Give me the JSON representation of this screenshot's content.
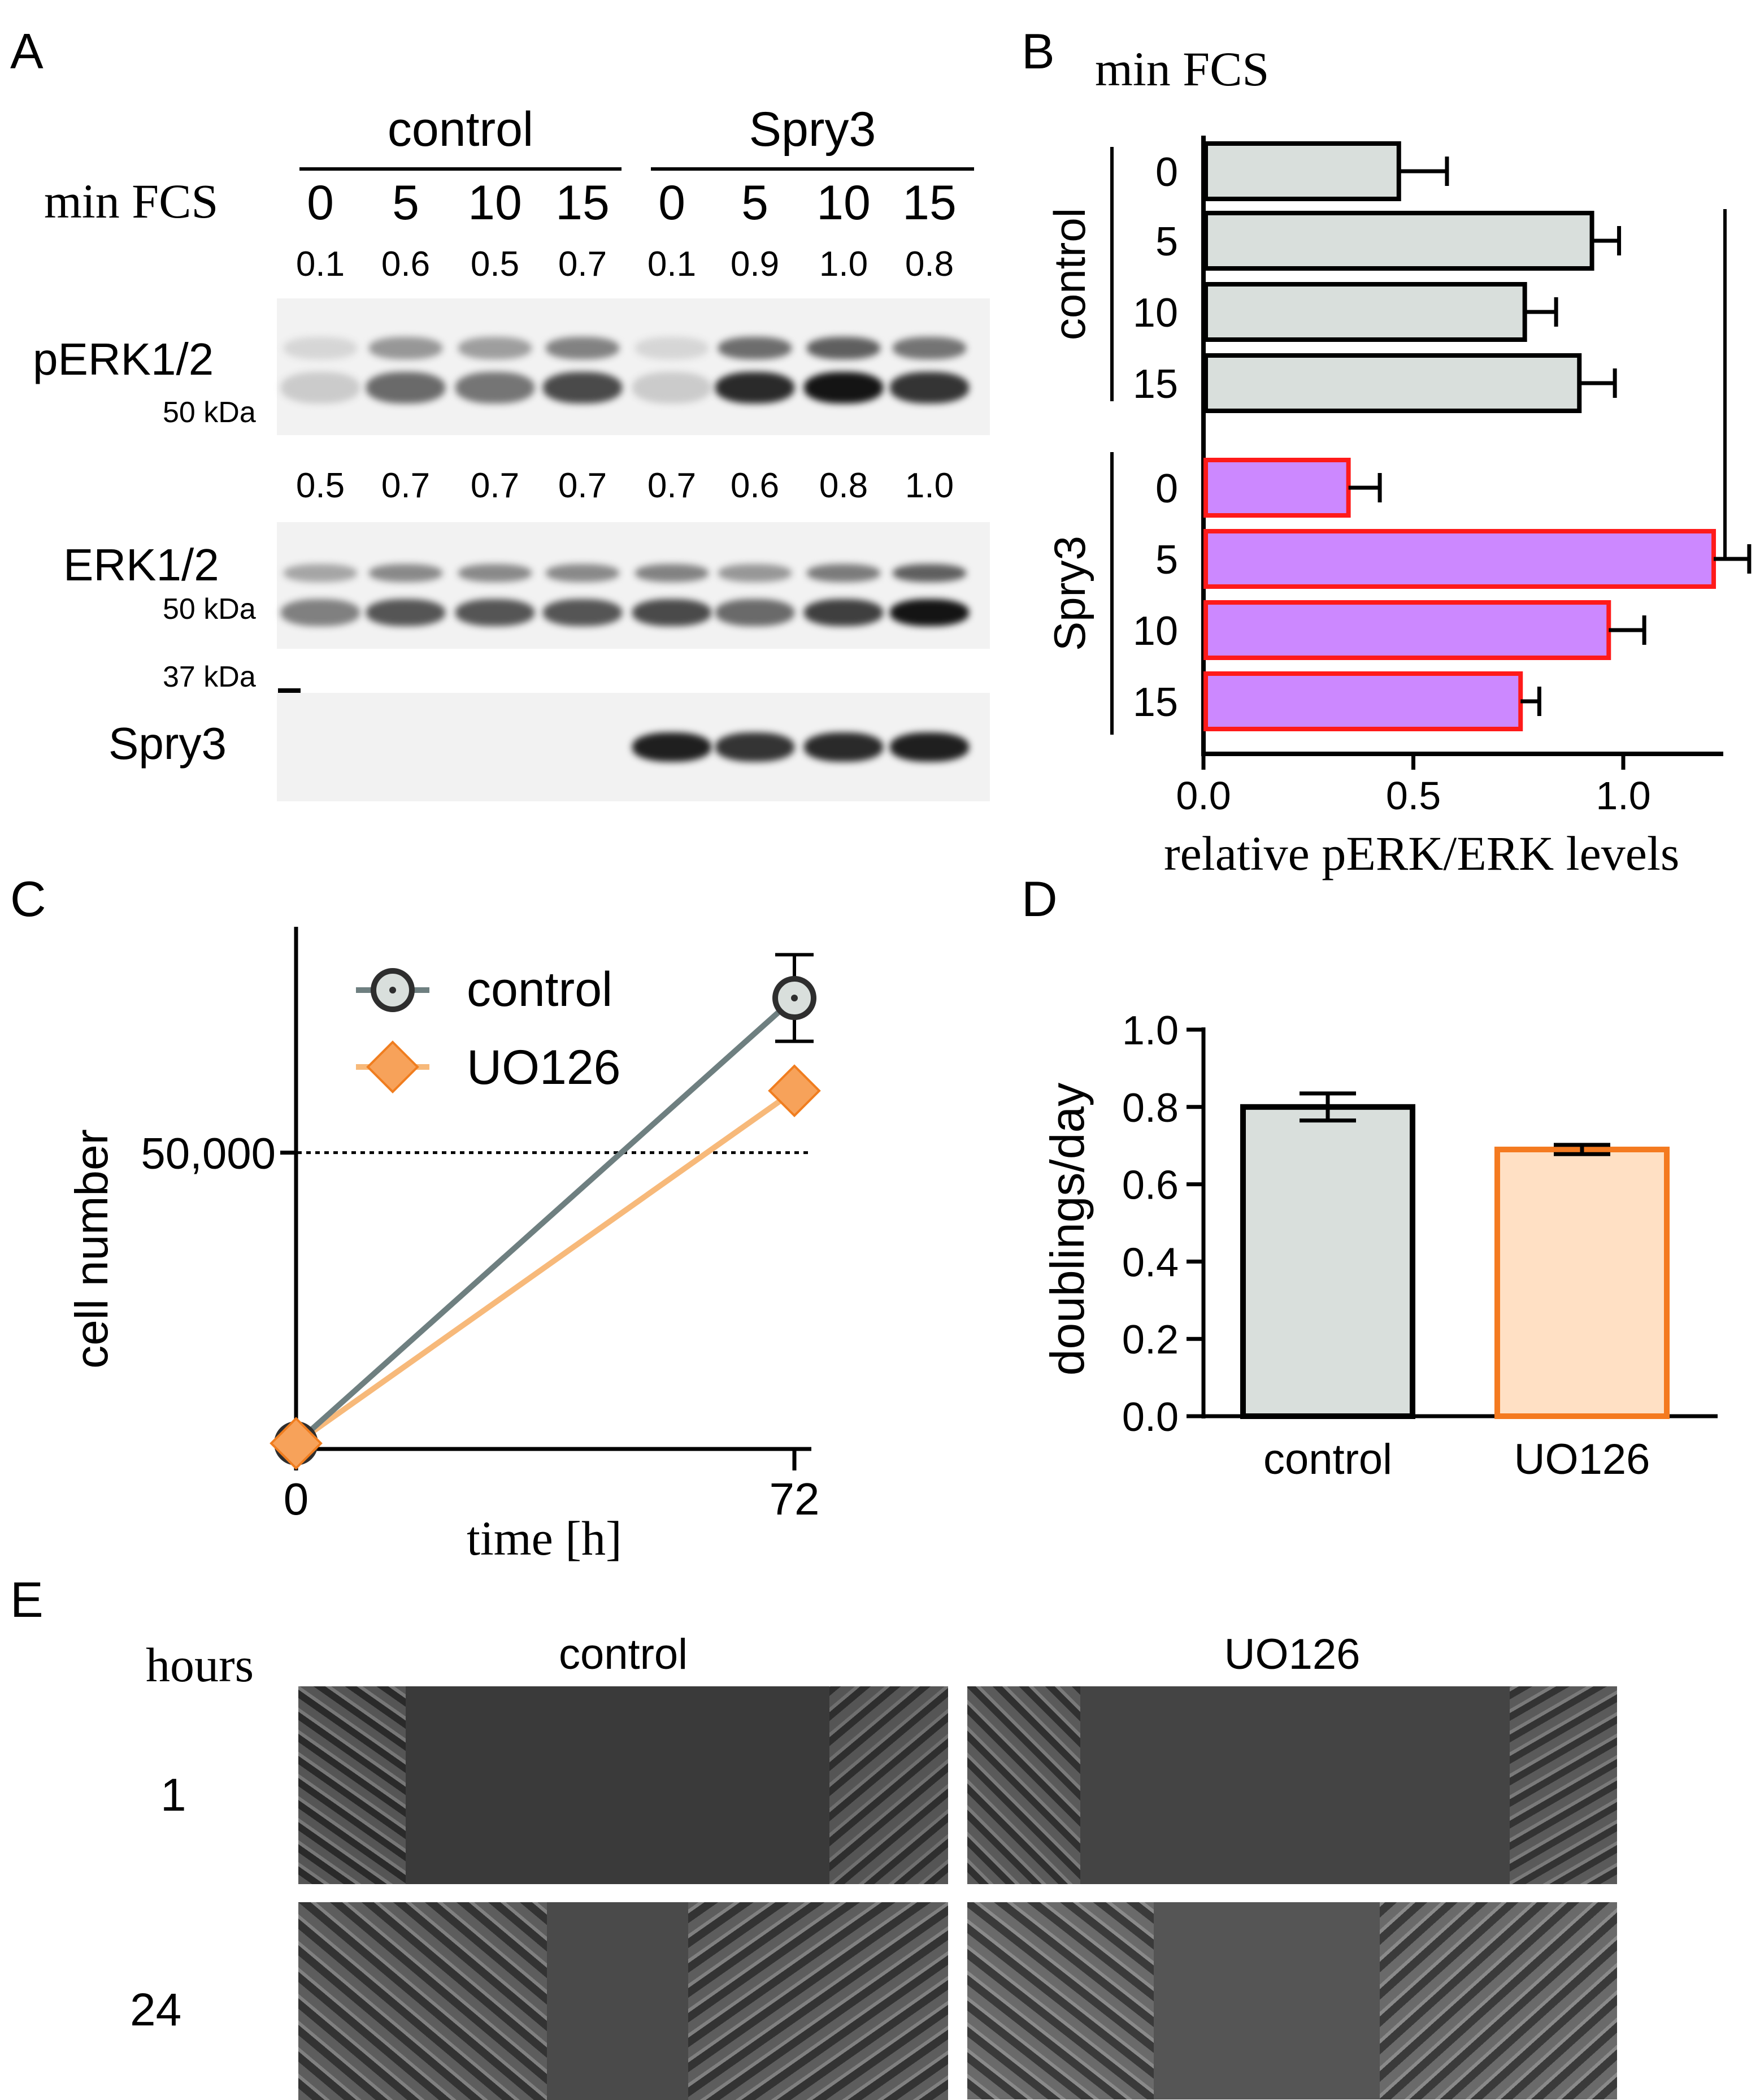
{
  "panels": {
    "a": "A",
    "b": "B",
    "c": "C",
    "d": "D",
    "e": "E"
  },
  "panelA": {
    "group_control": "control",
    "group_spry3": "Spry3",
    "row_label": "min FCS",
    "lanes": [
      "0",
      "5",
      "10",
      "15",
      "0",
      "5",
      "10",
      "15"
    ],
    "perk_values": [
      "0.1",
      "0.6",
      "0.5",
      "0.7",
      "0.1",
      "0.9",
      "1.0",
      "0.8"
    ],
    "erk_values": [
      "0.5",
      "0.7",
      "0.7",
      "0.7",
      "0.7",
      "0.6",
      "0.8",
      "1.0"
    ],
    "perk_label": "pERK1/2",
    "erk_label": "ERK1/2",
    "spry3_label": "Spry3",
    "marker_50_a": "50 kDa",
    "marker_50_b": "50 kDa",
    "marker_37": "37 kDa",
    "band_intensity": {
      "perk": [
        0.15,
        0.6,
        0.55,
        0.75,
        0.15,
        0.9,
        1.0,
        0.85
      ],
      "erk": [
        0.5,
        0.7,
        0.7,
        0.7,
        0.75,
        0.6,
        0.8,
        1.0
      ],
      "spry3": [
        0,
        0,
        0,
        0,
        0.95,
        0.85,
        0.9,
        0.95
      ]
    }
  },
  "chart_data": [
    {
      "type": "bar",
      "orientation": "horizontal",
      "title": "min FCS",
      "xlabel": "relative pERK/ERK levels",
      "xlim": [
        0,
        1.4
      ],
      "xticks": [
        "0.0",
        "0.5",
        "1.0"
      ],
      "groups": [
        "control",
        "Spry3"
      ],
      "categories": [
        "0",
        "5",
        "10",
        "15"
      ],
      "series": [
        {
          "name": "control",
          "values": [
            0.46,
            0.92,
            0.76,
            0.89
          ],
          "errors": [
            0.12,
            0.07,
            0.08,
            0.09
          ],
          "fill": "#d9dfdc",
          "stroke": "#000000"
        },
        {
          "name": "Spry3",
          "values": [
            0.34,
            1.21,
            0.96,
            0.75
          ],
          "errors": [
            0.08,
            0.09,
            0.09,
            0.05
          ],
          "fill": "#cc88ff",
          "stroke": "#ff1a1a"
        }
      ],
      "significance": "**"
    },
    {
      "type": "line",
      "xlabel": "time [h]",
      "ylabel": "cell number",
      "x": [
        "0",
        "72"
      ],
      "ylim": [
        0,
        70000
      ],
      "reference_line": {
        "value": 50000,
        "label": "50,000"
      },
      "series": [
        {
          "name": "control",
          "values": [
            3000,
            75000
          ],
          "errors": [
            0,
            7000
          ],
          "color": "#6e7f80",
          "marker": "circle"
        },
        {
          "name": "UO126",
          "values": [
            3000,
            60000
          ],
          "errors": [
            0,
            0
          ],
          "color": "#f7b97a",
          "marker": "diamond"
        }
      ]
    },
    {
      "type": "bar",
      "ylabel": "doublings/day",
      "ylim": [
        0.0,
        1.0
      ],
      "yticks": [
        "0.0",
        "0.2",
        "0.4",
        "0.6",
        "0.8",
        "1.0"
      ],
      "categories": [
        "control",
        "UO126"
      ],
      "values": [
        0.8,
        0.69
      ],
      "errors": [
        0.035,
        0.012
      ],
      "fills": [
        "#d9dfdc",
        "#ffe0c4"
      ],
      "strokes": [
        "#000000",
        "#f47a20"
      ]
    }
  ],
  "panelE": {
    "hours_label": "hours",
    "col_control": "control",
    "col_uo126": "UO126",
    "rows": [
      "1",
      "24"
    ]
  }
}
